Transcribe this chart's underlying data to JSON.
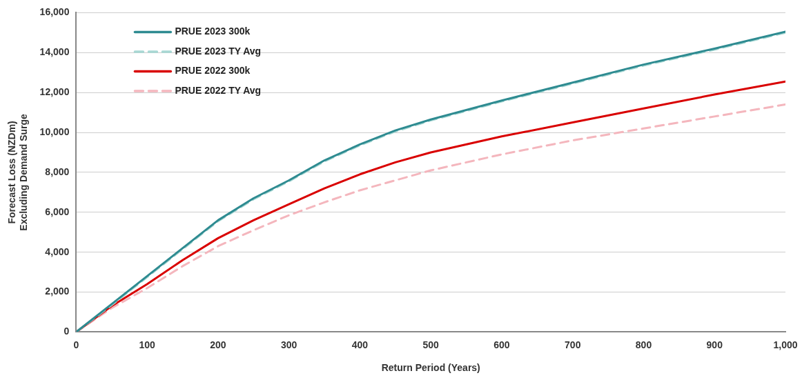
{
  "chart_data": {
    "type": "line",
    "xlabel": "Return Period (Years)",
    "ylabel": "Forecast Loss (NZDm)\nExcluding Demand Surge",
    "x": [
      0,
      50,
      100,
      150,
      200,
      250,
      300,
      350,
      400,
      450,
      500,
      600,
      700,
      800,
      900,
      1000
    ],
    "series": [
      {
        "name": "PRUE 2023 300k",
        "color": "#2e8b91",
        "line_style": "solid",
        "values": [
          0,
          1400,
          2800,
          4200,
          5600,
          6700,
          7600,
          8600,
          9400,
          10100,
          10650,
          11600,
          12500,
          13400,
          14200,
          15050
        ]
      },
      {
        "name": "PRUE 2023 TY Avg",
        "color": "#a8d8d4",
        "line_style": "dashed",
        "values": [
          0,
          1350,
          2750,
          4150,
          5550,
          6650,
          7550,
          8550,
          9350,
          10050,
          10600,
          11550,
          12450,
          13350,
          14150,
          15000
        ]
      },
      {
        "name": "PRUE 2022 300k",
        "color": "#d90000",
        "line_style": "solid",
        "values": [
          0,
          1300,
          2400,
          3600,
          4700,
          5600,
          6400,
          7200,
          7900,
          8500,
          9000,
          9800,
          10500,
          11200,
          11900,
          12550
        ]
      },
      {
        "name": "PRUE 2022 TY Avg",
        "color": "#f4b6bd",
        "line_style": "dashed",
        "values": [
          0,
          1200,
          2200,
          3300,
          4300,
          5100,
          5850,
          6500,
          7100,
          7600,
          8100,
          8900,
          9600,
          10200,
          10800,
          11400
        ]
      }
    ],
    "xlim": [
      0,
      1000
    ],
    "xticks": [
      0,
      100,
      200,
      300,
      400,
      500,
      600,
      700,
      800,
      900,
      {
        "value": 1000,
        "label": "1,000"
      }
    ],
    "ylim": [
      0,
      16000
    ],
    "yticks": [
      0,
      {
        "value": 2000,
        "label": "2,000"
      },
      {
        "value": 4000,
        "label": "4,000"
      },
      {
        "value": 6000,
        "label": "6,000"
      },
      {
        "value": 8000,
        "label": "8,000"
      },
      {
        "value": 10000,
        "label": "10,000"
      },
      {
        "value": 12000,
        "label": "12,000"
      },
      {
        "value": 14000,
        "label": "14,000"
      },
      {
        "value": 16000,
        "label": "16,000"
      }
    ],
    "grid": "y",
    "legend": "top left",
    "marker": "none"
  }
}
